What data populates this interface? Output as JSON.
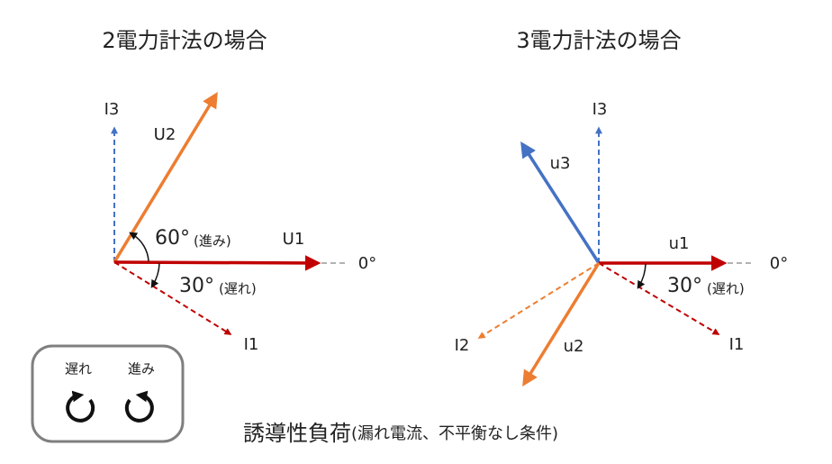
{
  "left": {
    "title": "2電力計法の場合",
    "labels": {
      "i3": "I3",
      "u2": "U2",
      "u1": "U1",
      "zero": "0°",
      "angle60": "60°",
      "angle60_note": "(進み)",
      "angle30": "30°",
      "angle30_note": "(遅れ)",
      "i1": "I1"
    }
  },
  "right": {
    "title": "3電力計法の場合",
    "labels": {
      "i3": "I3",
      "u3": "u3",
      "u1": "u1",
      "zero": "0°",
      "angle30": "30°",
      "angle30_note": "(遅れ)",
      "i2": "I2",
      "u2": "u2",
      "i1": "I1"
    }
  },
  "legend": {
    "lag": "遅れ",
    "lead": "進み"
  },
  "footer": {
    "main": "誘導性負荷",
    "note": "(漏れ電流、不平衡なし条件)"
  }
}
